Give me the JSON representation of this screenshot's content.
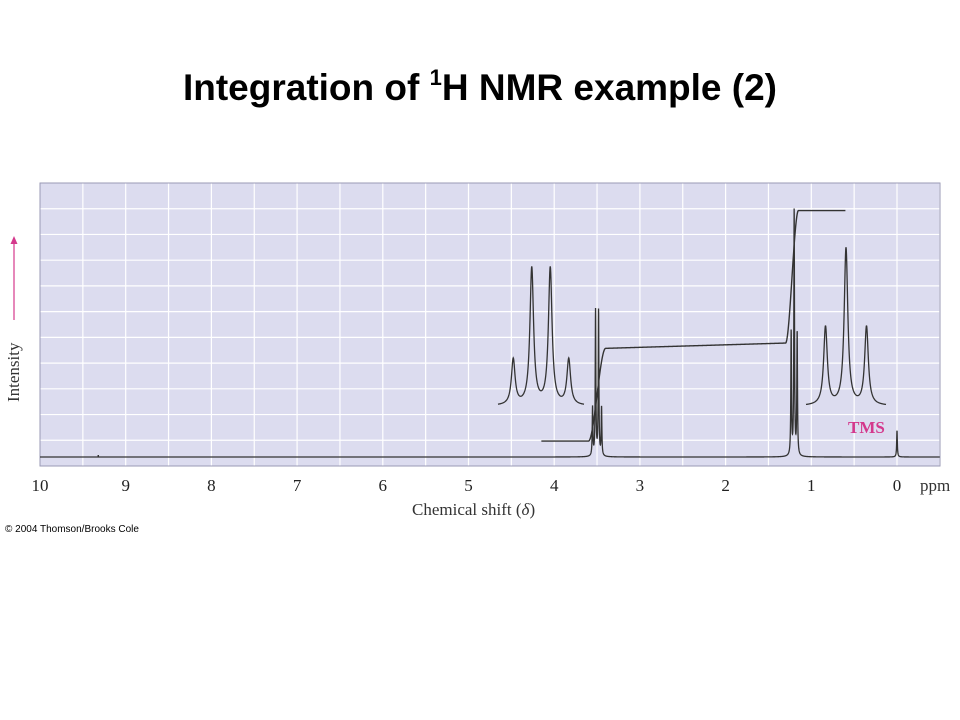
{
  "slide": {
    "title_main": "Integration of ",
    "title_sup": "1",
    "title_rest": "H NMR example (2)",
    "copyright": "© 2004 Thomson/Brooks Cole"
  },
  "chart_data": {
    "type": "line",
    "xlabel": "Chemical shift (δ)",
    "ylabel": "Intensity",
    "x_unit": "ppm",
    "xlim": [
      10,
      0
    ],
    "x_reversed": true,
    "grid": true,
    "x_ticks": [
      "10",
      "9",
      "8",
      "7",
      "6",
      "5",
      "4",
      "3",
      "2",
      "1",
      "0"
    ],
    "annotations": [
      {
        "text": "TMS",
        "x": 0.5,
        "color": "#d4388c"
      }
    ],
    "peaks": [
      {
        "name": "quartet",
        "center": 3.5,
        "multiplicity": 4,
        "height": 0.55
      },
      {
        "name": "triplet",
        "center": 1.2,
        "multiplicity": 3,
        "height": 0.93
      },
      {
        "name": "TMS",
        "center": 0.0,
        "multiplicity": 1,
        "height": 0.1
      }
    ],
    "integration": {
      "steps": [
        {
          "start": 3.6,
          "end": 3.4,
          "from": 0.06,
          "to": 0.41
        },
        {
          "start": 1.3,
          "end": 1.15,
          "from": 0.43,
          "to": 0.93
        }
      ]
    },
    "colors": {
      "grid_bg": "#dcdcef",
      "grid_line": "#ffffff",
      "trace": "#333333",
      "tms": "#d4388c",
      "axis_arrow": "#d4388c"
    }
  }
}
